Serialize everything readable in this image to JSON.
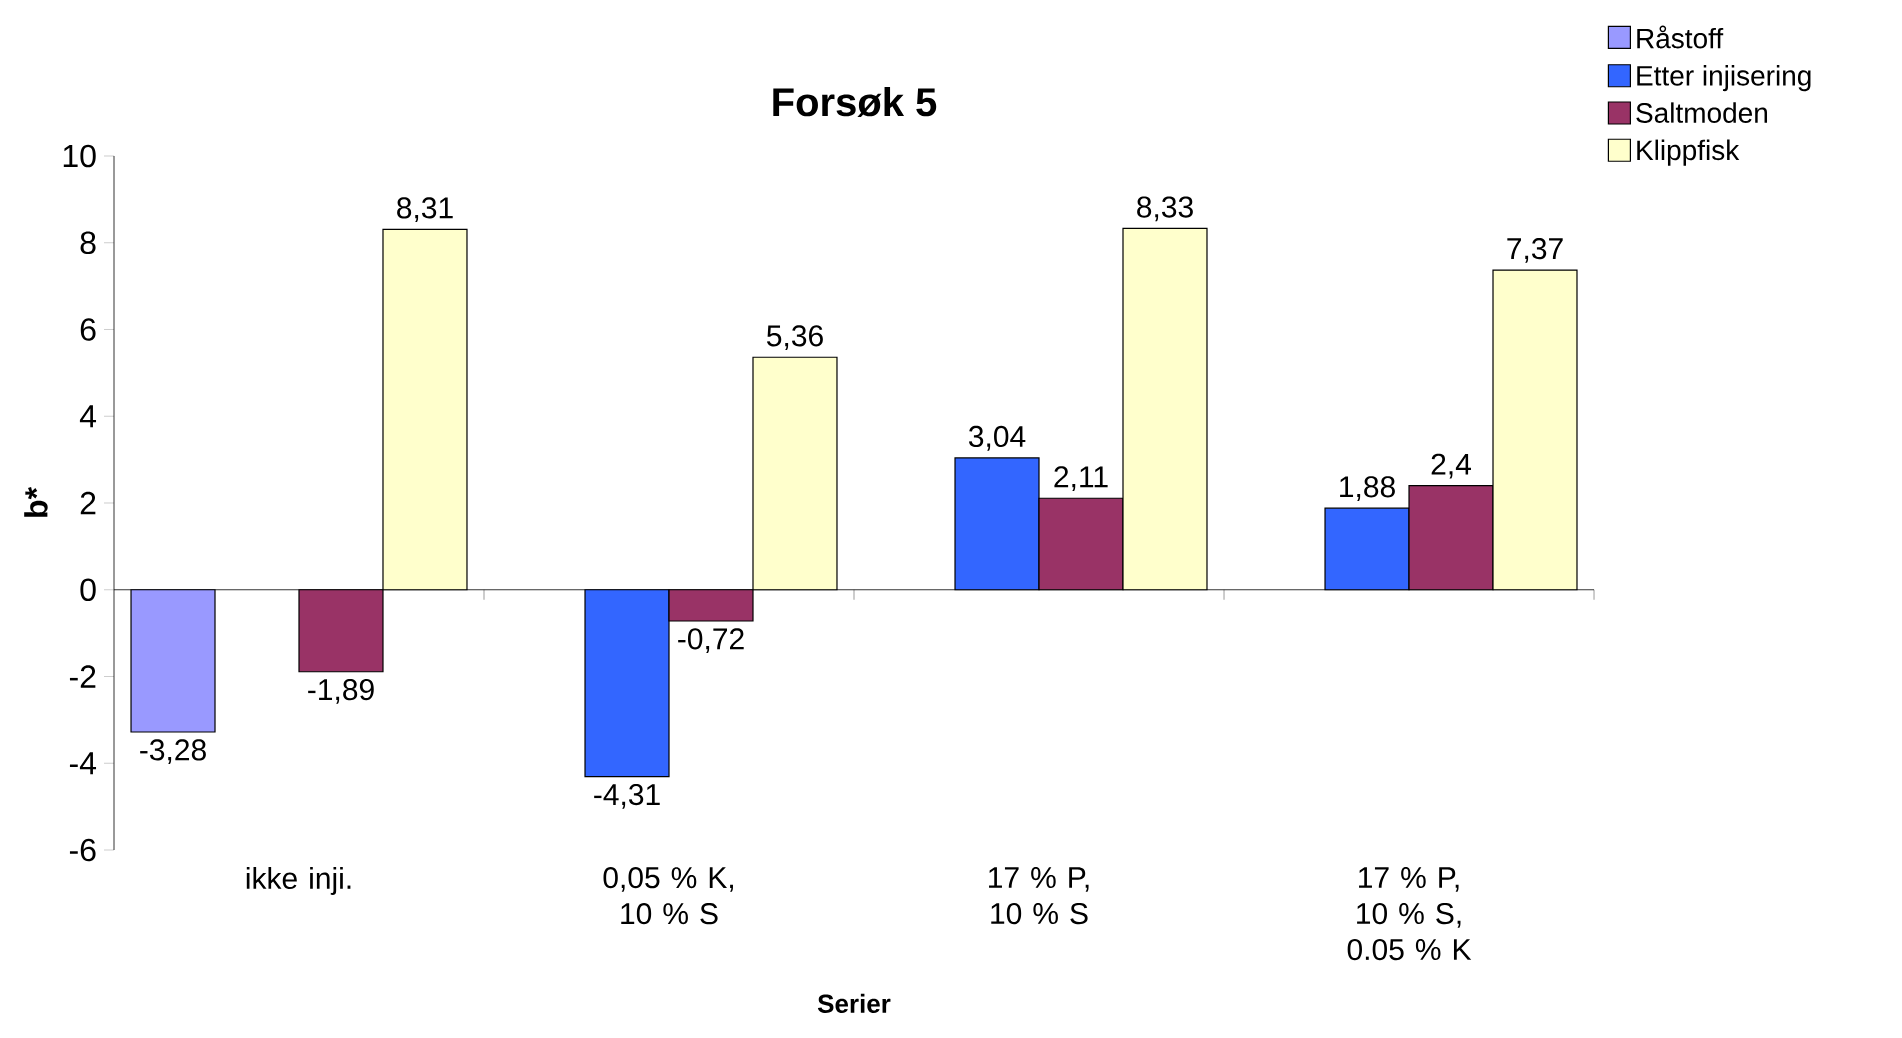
{
  "chart_data": {
    "type": "bar",
    "title": "Forsøk 5",
    "xlabel": "Serier",
    "ylabel": "b*",
    "categories": [
      "ikke inji.",
      "0,05 % K, 10 % S",
      "17 % P, 10 % S",
      "17 % P, 10 % S, 0.05 % K"
    ],
    "series": [
      {
        "name": "Råstoff",
        "color": "#9999ff",
        "values": [
          -3.28,
          null,
          null,
          null
        ],
        "value_labels": [
          "-3,28",
          null,
          null,
          null
        ]
      },
      {
        "name": "Etter injisering",
        "color": "#3366ff",
        "values": [
          null,
          -4.31,
          3.04,
          1.88
        ],
        "value_labels": [
          null,
          "-4,31",
          "3,04",
          "1,88"
        ]
      },
      {
        "name": "Saltmoden",
        "color": "#993366",
        "values": [
          -1.89,
          -0.72,
          2.11,
          2.4
        ],
        "value_labels": [
          "-1,89",
          "-0,72",
          "2,11",
          "2,4"
        ]
      },
      {
        "name": "Klippfisk",
        "color": "#ffffcc",
        "values": [
          8.31,
          5.36,
          8.33,
          7.37
        ],
        "value_labels": [
          "8,31",
          "5,36",
          "8,33",
          "7,37"
        ]
      }
    ],
    "ylim": [
      -6,
      10
    ],
    "yticks": [
      -6,
      -4,
      -2,
      0,
      2,
      4,
      6,
      8,
      10
    ],
    "legend": "top right"
  }
}
